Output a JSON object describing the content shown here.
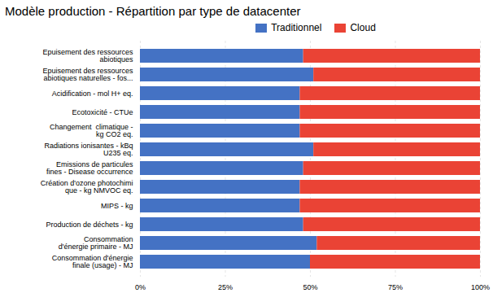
{
  "chart_data": {
    "type": "bar",
    "orientation": "horizontal",
    "stacked": true,
    "title": "Modèle production - Répartition par type de datacenter",
    "categories": [
      "Epuisement des ressources\nabiotiques",
      "Epuisement des ressources\nabiotiques naturelles - fos...",
      "Acidification - mol H+ eq.",
      "Ecotoxicité - CTUe",
      "Changement  climatique -\nkg CO2 eq.",
      "Radiations ionisantes - kBq\nU235 eq.",
      "Emissions de particules\nfines - Disease occurrence",
      "Création d'ozone photochimi\nque - kg NMVOC eq.",
      "MIPS - kg",
      "Production de déchets - kg",
      "Consommation\nd'énergie primaire - MJ",
      "Consommation d'énergie\nfinale (usage) - MJ"
    ],
    "series": [
      {
        "name": "Traditionnel",
        "color": "#4472C4",
        "values": [
          48,
          51,
          47,
          47,
          47,
          51,
          48,
          47,
          47,
          48,
          52,
          50
        ]
      },
      {
        "name": "Cloud",
        "color": "#EA4335",
        "values": [
          52,
          49,
          53,
          53,
          53,
          49,
          52,
          53,
          53,
          52,
          48,
          50
        ]
      }
    ],
    "xlim": [
      0,
      100
    ],
    "xticks": [
      {
        "value": 0,
        "label": "0%"
      },
      {
        "value": 25,
        "label": "25%"
      },
      {
        "value": 50,
        "label": "50%"
      },
      {
        "value": 75,
        "label": "75%"
      },
      {
        "value": 100,
        "label": "100%"
      }
    ],
    "grid": true,
    "legend": "top"
  }
}
